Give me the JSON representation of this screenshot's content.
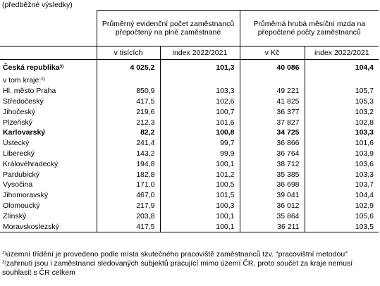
{
  "top_note": "(předběžné výsledky)",
  "headers": {
    "group_employees": "Průměrný evidenční počet zaměstnanců přepočtený na plně zaměstnané",
    "group_wage": "Průměrná hrubá měsíční mzda na přepočtené počty zaměstnanců",
    "col_thousands": "v tisících",
    "col_index1": "index 2022/2021",
    "col_czk": "v Kč",
    "col_index2": "index 2022/2021"
  },
  "total": {
    "name": "Česká republika",
    "sup": "3)",
    "employees": "4 025,2",
    "employees_index": "101,3",
    "wage": "40 086",
    "wage_index": "104,4"
  },
  "regions_label": "v tom kraje:",
  "regions_sup": "2)",
  "regions": [
    {
      "name": "Hl. město Praha",
      "employees": "850,9",
      "employees_index": "103,3",
      "wage": "49 221",
      "wage_index": "105,7"
    },
    {
      "name": "Středočeský",
      "employees": "417,5",
      "employees_index": "102,6",
      "wage": "41 825",
      "wage_index": "105,3"
    },
    {
      "name": "Jihočeský",
      "employees": "219,6",
      "employees_index": "100,7",
      "wage": "36 377",
      "wage_index": "103,2"
    },
    {
      "name": "Plzeňský",
      "employees": "212,3",
      "employees_index": "101,6",
      "wage": "37 827",
      "wage_index": "102,8"
    },
    {
      "name": "Karlovarský",
      "employees": "82,2",
      "employees_index": "100,8",
      "wage": "34 725",
      "wage_index": "103,3",
      "bold": true
    },
    {
      "name": "Ústecký",
      "employees": "241,4",
      "employees_index": "99,7",
      "wage": "36 866",
      "wage_index": "101,6"
    },
    {
      "name": "Liberecký",
      "employees": "143,2",
      "employees_index": "99,9",
      "wage": "36 764",
      "wage_index": "103,9"
    },
    {
      "name": "Královéhradecký",
      "employees": "194,8",
      "employees_index": "100,1",
      "wage": "38 712",
      "wage_index": "103,6"
    },
    {
      "name": "Pardubický",
      "employees": "182,8",
      "employees_index": "101,2",
      "wage": "35 385",
      "wage_index": "103,3"
    },
    {
      "name": "Vysočina",
      "employees": "171,0",
      "employees_index": "100,5",
      "wage": "36 698",
      "wage_index": "103,7"
    },
    {
      "name": "Jihomoravský",
      "employees": "467,0",
      "employees_index": "101,5",
      "wage": "39 041",
      "wage_index": "104,4"
    },
    {
      "name": "Olomoucký",
      "employees": "217,9",
      "employees_index": "100,3",
      "wage": "36 012",
      "wage_index": "102,9"
    },
    {
      "name": "Zlínský",
      "employees": "203,8",
      "employees_index": "100,1",
      "wage": "35 864",
      "wage_index": "105,6"
    },
    {
      "name": "Moravskoslezský",
      "employees": "417,5",
      "employees_index": "100,1",
      "wage": "36 211",
      "wage_index": "103,5"
    }
  ],
  "footnotes": [
    {
      "mark": "2)",
      "text": "územní třídění je provedeno podle místa skutečného pracoviště zaměstnanců tzv. \"pracovištní metodou\""
    },
    {
      "mark": "3)",
      "text": "zahrnuti jsou i zaměstnanci sledovaných subjektů pracující mimo území ČR, proto součet za kraje nemusí souhlasit s ČR celkem"
    }
  ]
}
